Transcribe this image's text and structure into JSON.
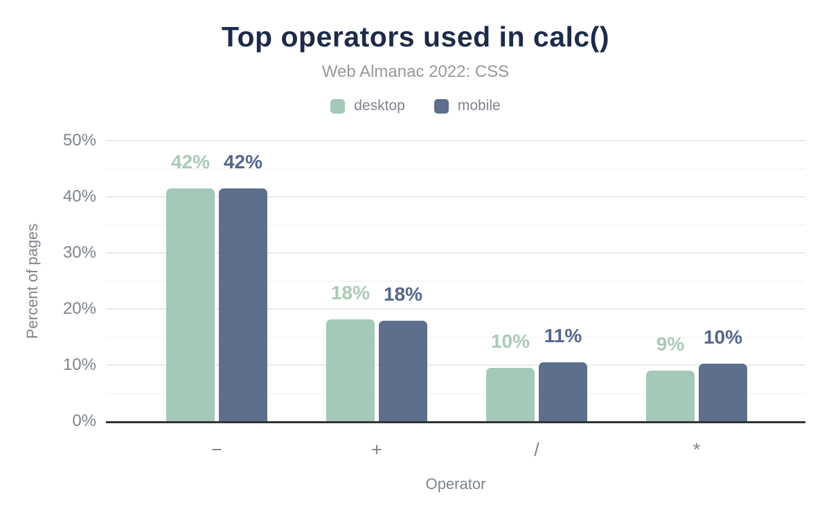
{
  "chart_data": {
    "type": "bar",
    "title": "Top operators used in calc()",
    "subtitle": "Web Almanac 2022: CSS",
    "xlabel": "Operator",
    "ylabel": "Percent of pages",
    "categories": [
      "−",
      "+",
      "/",
      "*"
    ],
    "series": [
      {
        "name": "desktop",
        "color": "#a4c9b8",
        "label_color": "#a8cbb7",
        "values": [
          41.5,
          18.2,
          9.5,
          9.0
        ],
        "labels": [
          "42%",
          "18%",
          "10%",
          "9%"
        ]
      },
      {
        "name": "mobile",
        "color": "#5d6f8d",
        "label_color": "#54678c",
        "values": [
          41.5,
          17.9,
          10.5,
          10.2
        ],
        "labels": [
          "42%",
          "18%",
          "11%",
          "10%"
        ]
      }
    ],
    "ylim": [
      0,
      50
    ],
    "yticks": [
      0,
      10,
      20,
      30,
      40,
      50
    ],
    "ytick_labels": [
      "0%",
      "10%",
      "20%",
      "30%",
      "40%",
      "50%"
    ],
    "minor_grid_step": 5,
    "grid": true,
    "legend_position": "top",
    "colors": {
      "title": "#1c2b4a",
      "subtitle": "#97999e",
      "axis_text": "#7e848c",
      "axis_line": "#333437",
      "major_gridline": "#ebebed",
      "minor_gridline": "#f6f6f7"
    }
  }
}
